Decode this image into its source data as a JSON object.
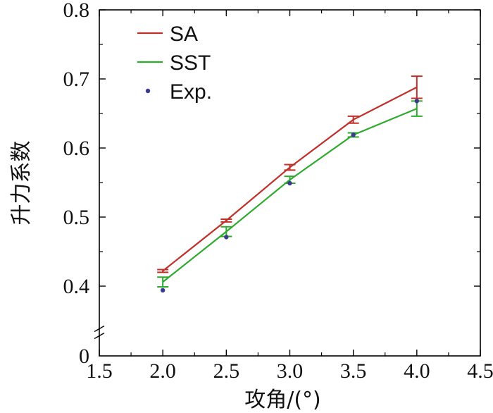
{
  "chart_data": {
    "type": "line",
    "title": "",
    "xlabel": "攻角/(°)",
    "ylabel": "升力系数",
    "xlim": [
      1.5,
      4.5
    ],
    "ylim": [
      0,
      0.8
    ],
    "y_axis_break": true,
    "xticks": [
      "1.5",
      "2.0",
      "2.5",
      "3.0",
      "3.5",
      "4.0",
      "4.5"
    ],
    "yticks": [
      "0",
      "0.4",
      "0.5",
      "0.6",
      "0.7",
      "0.8"
    ],
    "x": [
      2.0,
      2.5,
      3.0,
      3.5,
      4.0
    ],
    "series": [
      {
        "name": "SA",
        "kind": "line",
        "color": "#c0302a",
        "values": [
          0.422,
          0.495,
          0.572,
          0.641,
          0.688
        ],
        "errors": [
          0.002,
          0.002,
          0.004,
          0.005,
          0.016
        ]
      },
      {
        "name": "SST",
        "kind": "line",
        "color": "#2eaa2e",
        "values": [
          0.406,
          0.479,
          0.554,
          0.619,
          0.657
        ],
        "errors": [
          0.007,
          0.007,
          0.005,
          0.003,
          0.011
        ]
      },
      {
        "name": "Exp.",
        "kind": "points",
        "color": "#3b3b8f",
        "values": [
          0.394,
          0.471,
          0.549,
          0.619,
          0.668
        ]
      }
    ],
    "legend": {
      "position": "top-left"
    }
  }
}
